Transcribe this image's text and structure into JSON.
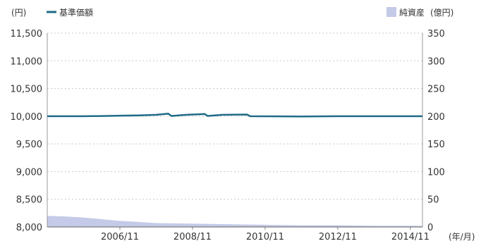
{
  "chart_data": {
    "type": "line",
    "grid": true,
    "legend": {
      "line_series_position": "top-left",
      "area_series_position": "top-right"
    },
    "left_axis": {
      "unit_label": "(円)",
      "ylim": [
        8000,
        11500
      ],
      "ticks": [
        8000,
        8500,
        9000,
        9500,
        10000,
        10500,
        11000,
        11500
      ],
      "tick_labels": [
        "8,000",
        "8,500",
        "9,000",
        "9,500",
        "10,000",
        "10,500",
        "11,000",
        "11,500"
      ]
    },
    "right_axis": {
      "unit_label": "(億円)",
      "ylim": [
        0,
        350
      ],
      "ticks": [
        0,
        50,
        100,
        150,
        200,
        250,
        300,
        350
      ],
      "tick_labels": [
        "0",
        "50",
        "100",
        "150",
        "200",
        "250",
        "300",
        "350"
      ]
    },
    "x_axis": {
      "unit_label": "(年/月)",
      "xlim": [
        "2004/11",
        "2015/03"
      ],
      "tick_labels": [
        "2006/11",
        "2008/11",
        "2010/11",
        "2012/11",
        "2014/11"
      ]
    },
    "series": [
      {
        "name": "基準価額",
        "type": "line",
        "axis": "left",
        "color": "#1f6b88",
        "points": [
          {
            "x": "2004/11",
            "y": 10000
          },
          {
            "x": "2005/11",
            "y": 10000
          },
          {
            "x": "2006/05",
            "y": 10003
          },
          {
            "x": "2006/11",
            "y": 10010
          },
          {
            "x": "2007/05",
            "y": 10015
          },
          {
            "x": "2007/11",
            "y": 10025
          },
          {
            "x": "2008/03",
            "y": 10045
          },
          {
            "x": "2008/04",
            "y": 10005
          },
          {
            "x": "2008/09",
            "y": 10025
          },
          {
            "x": "2009/03",
            "y": 10040
          },
          {
            "x": "2009/04",
            "y": 10005
          },
          {
            "x": "2009/09",
            "y": 10025
          },
          {
            "x": "2010/05",
            "y": 10030
          },
          {
            "x": "2010/06",
            "y": 10000
          },
          {
            "x": "2011/11",
            "y": 9995
          },
          {
            "x": "2012/11",
            "y": 10000
          },
          {
            "x": "2013/11",
            "y": 10000
          },
          {
            "x": "2014/11",
            "y": 10000
          },
          {
            "x": "2015/03",
            "y": 10000
          }
        ]
      },
      {
        "name": "純資産",
        "type": "area",
        "axis": "right",
        "color": "#c4cae7",
        "points": [
          {
            "x": "2004/11",
            "y": 20
          },
          {
            "x": "2005/05",
            "y": 19
          },
          {
            "x": "2005/11",
            "y": 17
          },
          {
            "x": "2006/05",
            "y": 14
          },
          {
            "x": "2006/11",
            "y": 11
          },
          {
            "x": "2007/05",
            "y": 9
          },
          {
            "x": "2007/11",
            "y": 7
          },
          {
            "x": "2008/11",
            "y": 6
          },
          {
            "x": "2009/11",
            "y": 5
          },
          {
            "x": "2010/11",
            "y": 4
          },
          {
            "x": "2011/11",
            "y": 3
          },
          {
            "x": "2012/11",
            "y": 3
          },
          {
            "x": "2013/11",
            "y": 2
          },
          {
            "x": "2014/11",
            "y": 2
          },
          {
            "x": "2015/03",
            "y": 2
          }
        ]
      }
    ]
  }
}
